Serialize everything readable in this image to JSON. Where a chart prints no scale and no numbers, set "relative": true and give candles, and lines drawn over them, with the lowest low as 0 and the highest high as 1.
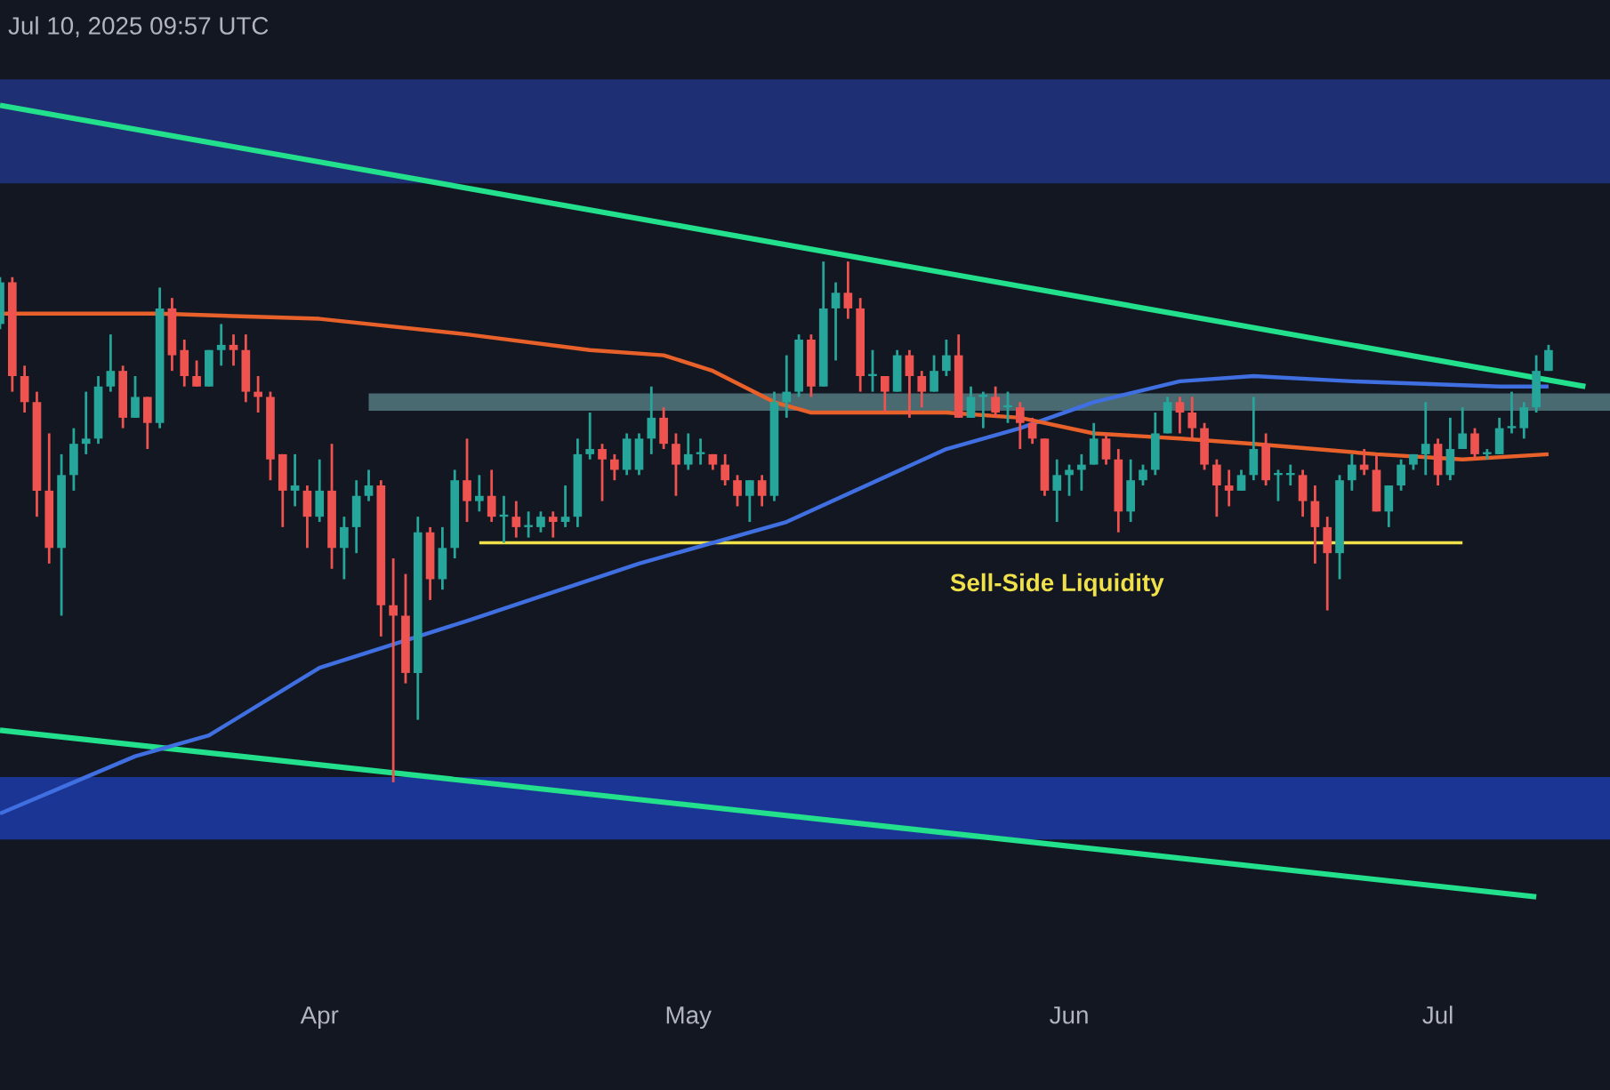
{
  "chart_data": {
    "type": "candlestick",
    "relative": true,
    "x": [
      "2025-03-06",
      "2025-03-07",
      "2025-03-08",
      "2025-03-09",
      "2025-03-10",
      "2025-03-11",
      "2025-03-12",
      "2025-03-13",
      "2025-03-14",
      "2025-03-15",
      "2025-03-16",
      "2025-03-17",
      "2025-03-18",
      "2025-03-19",
      "2025-03-20",
      "2025-03-21",
      "2025-03-22",
      "2025-03-23",
      "2025-03-24",
      "2025-03-25",
      "2025-03-26",
      "2025-03-27",
      "2025-03-28",
      "2025-03-29",
      "2025-03-30",
      "2025-03-31",
      "2025-04-01",
      "2025-04-02",
      "2025-04-03",
      "2025-04-04",
      "2025-04-05",
      "2025-04-06",
      "2025-04-07",
      "2025-04-08",
      "2025-04-09",
      "2025-04-10",
      "2025-04-11",
      "2025-04-12",
      "2025-04-13",
      "2025-04-14",
      "2025-04-15",
      "2025-04-16",
      "2025-04-17",
      "2025-04-18",
      "2025-04-19",
      "2025-04-20",
      "2025-04-21",
      "2025-04-22",
      "2025-04-23",
      "2025-04-24",
      "2025-04-25",
      "2025-04-26",
      "2025-04-27",
      "2025-04-28",
      "2025-04-29",
      "2025-04-30",
      "2025-05-01",
      "2025-05-02",
      "2025-05-03",
      "2025-05-04",
      "2025-05-05",
      "2025-05-06",
      "2025-05-07",
      "2025-05-08",
      "2025-05-09",
      "2025-05-10",
      "2025-05-11",
      "2025-05-12",
      "2025-05-13",
      "2025-05-14",
      "2025-05-15",
      "2025-05-16",
      "2025-05-17",
      "2025-05-18",
      "2025-05-19",
      "2025-05-20",
      "2025-05-21",
      "2025-05-22",
      "2025-05-23",
      "2025-05-24",
      "2025-05-25",
      "2025-05-26",
      "2025-05-27",
      "2025-05-28",
      "2025-05-29",
      "2025-05-30",
      "2025-05-31",
      "2025-06-01",
      "2025-06-02",
      "2025-06-03",
      "2025-06-04",
      "2025-06-05",
      "2025-06-06",
      "2025-06-07",
      "2025-06-08",
      "2025-06-09",
      "2025-06-10",
      "2025-06-11",
      "2025-06-12",
      "2025-06-13",
      "2025-06-14",
      "2025-06-15",
      "2025-06-16",
      "2025-06-17",
      "2025-06-18",
      "2025-06-19",
      "2025-06-20",
      "2025-06-21",
      "2025-06-22",
      "2025-06-23",
      "2025-06-24",
      "2025-06-25",
      "2025-06-26",
      "2025-06-27",
      "2025-06-28",
      "2025-06-29",
      "2025-06-30",
      "2025-07-01",
      "2025-07-02",
      "2025-07-03",
      "2025-07-04",
      "2025-07-05",
      "2025-07-06",
      "2025-07-07",
      "2025-07-08",
      "2025-07-09",
      "2025-07-10"
    ],
    "ohlc": [
      [
        0.88,
        0.97,
        0.87,
        0.96
      ],
      [
        0.96,
        0.97,
        0.75,
        0.78
      ],
      [
        0.78,
        0.8,
        0.71,
        0.73
      ],
      [
        0.73,
        0.75,
        0.51,
        0.56
      ],
      [
        0.56,
        0.67,
        0.42,
        0.45
      ],
      [
        0.45,
        0.63,
        0.32,
        0.59
      ],
      [
        0.59,
        0.68,
        0.56,
        0.65
      ],
      [
        0.65,
        0.75,
        0.63,
        0.66
      ],
      [
        0.66,
        0.78,
        0.65,
        0.76
      ],
      [
        0.76,
        0.86,
        0.75,
        0.79
      ],
      [
        0.79,
        0.8,
        0.68,
        0.7
      ],
      [
        0.7,
        0.78,
        0.7,
        0.74
      ],
      [
        0.74,
        0.74,
        0.64,
        0.69
      ],
      [
        0.69,
        0.95,
        0.68,
        0.91
      ],
      [
        0.91,
        0.93,
        0.79,
        0.82
      ],
      [
        0.83,
        0.85,
        0.76,
        0.78
      ],
      [
        0.78,
        0.81,
        0.76,
        0.76
      ],
      [
        0.76,
        0.83,
        0.76,
        0.83
      ],
      [
        0.83,
        0.88,
        0.8,
        0.84
      ],
      [
        0.84,
        0.86,
        0.8,
        0.83
      ],
      [
        0.83,
        0.86,
        0.73,
        0.75
      ],
      [
        0.75,
        0.78,
        0.71,
        0.74
      ],
      [
        0.74,
        0.75,
        0.58,
        0.62
      ],
      [
        0.63,
        0.63,
        0.49,
        0.56
      ],
      [
        0.56,
        0.63,
        0.53,
        0.57
      ],
      [
        0.56,
        0.57,
        0.45,
        0.51
      ],
      [
        0.51,
        0.62,
        0.5,
        0.56
      ],
      [
        0.56,
        0.65,
        0.41,
        0.45
      ],
      [
        0.45,
        0.51,
        0.39,
        0.49
      ],
      [
        0.49,
        0.58,
        0.44,
        0.55
      ],
      [
        0.55,
        0.6,
        0.54,
        0.57
      ],
      [
        0.57,
        0.58,
        0.28,
        0.34
      ],
      [
        0.34,
        0.43,
        0.0,
        0.32
      ],
      [
        0.32,
        0.4,
        0.19,
        0.21
      ],
      [
        0.21,
        0.51,
        0.12,
        0.48
      ],
      [
        0.48,
        0.49,
        0.35,
        0.39
      ],
      [
        0.39,
        0.49,
        0.37,
        0.45
      ],
      [
        0.45,
        0.6,
        0.43,
        0.58
      ],
      [
        0.58,
        0.66,
        0.5,
        0.54
      ],
      [
        0.54,
        0.59,
        0.52,
        0.55
      ],
      [
        0.55,
        0.6,
        0.5,
        0.51
      ],
      [
        0.51,
        0.55,
        0.46,
        0.51
      ],
      [
        0.51,
        0.54,
        0.47,
        0.49
      ],
      [
        0.49,
        0.52,
        0.47,
        0.49
      ],
      [
        0.49,
        0.52,
        0.48,
        0.51
      ],
      [
        0.51,
        0.52,
        0.47,
        0.5
      ],
      [
        0.5,
        0.57,
        0.49,
        0.51
      ],
      [
        0.51,
        0.66,
        0.49,
        0.63
      ],
      [
        0.63,
        0.71,
        0.62,
        0.64
      ],
      [
        0.64,
        0.65,
        0.54,
        0.62
      ],
      [
        0.62,
        0.63,
        0.58,
        0.6
      ],
      [
        0.6,
        0.67,
        0.59,
        0.66
      ],
      [
        0.6,
        0.67,
        0.59,
        0.66
      ],
      [
        0.66,
        0.76,
        0.63,
        0.7
      ],
      [
        0.7,
        0.72,
        0.64,
        0.65
      ],
      [
        0.65,
        0.67,
        0.55,
        0.61
      ],
      [
        0.61,
        0.67,
        0.6,
        0.63
      ],
      [
        0.63,
        0.66,
        0.61,
        0.63
      ],
      [
        0.63,
        0.63,
        0.6,
        0.61
      ],
      [
        0.61,
        0.63,
        0.57,
        0.58
      ],
      [
        0.58,
        0.59,
        0.53,
        0.55
      ],
      [
        0.55,
        0.58,
        0.5,
        0.58
      ],
      [
        0.58,
        0.59,
        0.53,
        0.55
      ],
      [
        0.55,
        0.75,
        0.54,
        0.73
      ],
      [
        0.73,
        0.82,
        0.7,
        0.75
      ],
      [
        0.75,
        0.86,
        0.74,
        0.85
      ],
      [
        0.85,
        0.86,
        0.74,
        0.76
      ],
      [
        0.76,
        1.0,
        0.76,
        0.91
      ],
      [
        0.91,
        0.96,
        0.81,
        0.94
      ],
      [
        0.94,
        1.0,
        0.89,
        0.91
      ],
      [
        0.91,
        0.93,
        0.75,
        0.78
      ],
      [
        0.78,
        0.83,
        0.75,
        0.78
      ],
      [
        0.78,
        0.78,
        0.71,
        0.75
      ],
      [
        0.75,
        0.83,
        0.75,
        0.82
      ],
      [
        0.82,
        0.83,
        0.7,
        0.78
      ],
      [
        0.78,
        0.79,
        0.72,
        0.75
      ],
      [
        0.75,
        0.82,
        0.75,
        0.79
      ],
      [
        0.79,
        0.85,
        0.78,
        0.82
      ],
      [
        0.82,
        0.86,
        0.7,
        0.7
      ],
      [
        0.7,
        0.76,
        0.7,
        0.74
      ],
      [
        0.74,
        0.75,
        0.68,
        0.74
      ],
      [
        0.74,
        0.76,
        0.7,
        0.71
      ],
      [
        0.72,
        0.75,
        0.69,
        0.72
      ],
      [
        0.72,
        0.73,
        0.64,
        0.69
      ],
      [
        0.69,
        0.7,
        0.65,
        0.66
      ],
      [
        0.66,
        0.66,
        0.55,
        0.56
      ],
      [
        0.56,
        0.62,
        0.5,
        0.59
      ],
      [
        0.59,
        0.61,
        0.55,
        0.6
      ],
      [
        0.6,
        0.63,
        0.56,
        0.61
      ],
      [
        0.61,
        0.69,
        0.61,
        0.66
      ],
      [
        0.66,
        0.67,
        0.61,
        0.62
      ],
      [
        0.62,
        0.64,
        0.48,
        0.52
      ],
      [
        0.52,
        0.62,
        0.5,
        0.58
      ],
      [
        0.58,
        0.61,
        0.57,
        0.6
      ],
      [
        0.6,
        0.71,
        0.59,
        0.67
      ],
      [
        0.67,
        0.74,
        0.67,
        0.73
      ],
      [
        0.73,
        0.74,
        0.67,
        0.71
      ],
      [
        0.71,
        0.74,
        0.66,
        0.68
      ],
      [
        0.68,
        0.69,
        0.6,
        0.61
      ],
      [
        0.61,
        0.62,
        0.51,
        0.57
      ],
      [
        0.57,
        0.6,
        0.53,
        0.56
      ],
      [
        0.56,
        0.6,
        0.56,
        0.59
      ],
      [
        0.59,
        0.74,
        0.58,
        0.64
      ],
      [
        0.65,
        0.67,
        0.57,
        0.58
      ],
      [
        0.59,
        0.6,
        0.54,
        0.59
      ],
      [
        0.59,
        0.61,
        0.57,
        0.59
      ],
      [
        0.59,
        0.6,
        0.51,
        0.54
      ],
      [
        0.54,
        0.57,
        0.42,
        0.49
      ],
      [
        0.49,
        0.51,
        0.33,
        0.44
      ],
      [
        0.44,
        0.59,
        0.39,
        0.58
      ],
      [
        0.58,
        0.63,
        0.56,
        0.61
      ],
      [
        0.61,
        0.64,
        0.59,
        0.6
      ],
      [
        0.6,
        0.63,
        0.52,
        0.52
      ],
      [
        0.52,
        0.57,
        0.49,
        0.57
      ],
      [
        0.57,
        0.62,
        0.56,
        0.61
      ],
      [
        0.61,
        0.63,
        0.6,
        0.63
      ],
      [
        0.63,
        0.73,
        0.59,
        0.65
      ],
      [
        0.65,
        0.66,
        0.57,
        0.59
      ],
      [
        0.59,
        0.7,
        0.58,
        0.64
      ],
      [
        0.64,
        0.72,
        0.64,
        0.67
      ],
      [
        0.67,
        0.68,
        0.62,
        0.63
      ],
      [
        0.63,
        0.64,
        0.62,
        0.63
      ],
      [
        0.63,
        0.7,
        0.63,
        0.68
      ],
      [
        0.68,
        0.75,
        0.67,
        0.68
      ],
      [
        0.68,
        0.73,
        0.66,
        0.72
      ],
      [
        0.72,
        0.82,
        0.71,
        0.79
      ],
      [
        0.79,
        0.84,
        0.79,
        0.83
      ]
    ],
    "series": [
      {
        "type": "line",
        "color": "#22e08c",
        "x": [
          "2025-03-06",
          "2025-07-13"
        ],
        "values": [
          1.3,
          0.76
        ]
      },
      {
        "type": "line",
        "color": "#22e08c",
        "x": [
          "2025-03-06",
          "2025-07-09"
        ],
        "values": [
          0.1,
          -0.22
        ]
      },
      {
        "type": "line",
        "color": "#4a6a72",
        "x": [
          "2025-04-05",
          "2025-07-15"
        ],
        "values": [
          0.73,
          0.73
        ]
      },
      {
        "type": "line",
        "color": "#f0e14a",
        "x": [
          "2025-04-14",
          "2025-07-03"
        ],
        "values": [
          0.46,
          0.46
        ]
      },
      {
        "type": "line",
        "color": "#3f6fe0",
        "x": [
          "2025-03-06",
          "2025-03-12",
          "2025-03-17",
          "2025-03-23",
          "2025-04-01",
          "2025-04-13",
          "2025-04-27",
          "2025-05-09",
          "2025-05-22",
          "2025-05-28",
          "2025-06-03",
          "2025-06-10",
          "2025-06-16",
          "2025-06-24",
          "2025-07-06",
          "2025-07-10"
        ],
        "values": [
          -0.06,
          0.0,
          0.05,
          0.09,
          0.22,
          0.31,
          0.42,
          0.5,
          0.64,
          0.68,
          0.73,
          0.77,
          0.78,
          0.77,
          0.76,
          0.76
        ]
      },
      {
        "type": "line",
        "color": "#e8612a",
        "x": [
          "2025-03-06",
          "2025-03-19",
          "2025-04-01",
          "2025-04-13",
          "2025-04-23",
          "2025-04-29",
          "2025-05-03",
          "2025-05-08",
          "2025-05-11",
          "2025-05-22",
          "2025-05-28",
          "2025-06-03",
          "2025-06-10",
          "2025-06-16",
          "2025-06-26",
          "2025-07-03",
          "2025-07-10"
        ],
        "values": [
          0.9,
          0.9,
          0.89,
          0.86,
          0.83,
          0.82,
          0.79,
          0.73,
          0.71,
          0.71,
          0.7,
          0.67,
          0.66,
          0.65,
          0.63,
          0.62,
          0.63
        ]
      }
    ],
    "bands": [
      {
        "axis": "y",
        "from": 1.15,
        "to": 1.35,
        "color": "#1f2f74"
      },
      {
        "axis": "y",
        "from": -0.11,
        "to": 0.01,
        "color": "#1b3594"
      }
    ],
    "xlim": [
      "2025-03-06",
      "2025-07-15"
    ],
    "xticks": [
      {
        "value": "2025-04-01",
        "label": "Apr"
      },
      {
        "value": "2025-05-01",
        "label": "May"
      },
      {
        "value": "2025-06-01",
        "label": "Jun"
      },
      {
        "value": "2025-07-01",
        "label": "Jul"
      }
    ],
    "annotations": [
      "Jul 10, 2025 09:57 UTC",
      {
        "text": "Sell-Side Liquidity",
        "x": "2025-05-31",
        "y": 0.46
      }
    ]
  }
}
